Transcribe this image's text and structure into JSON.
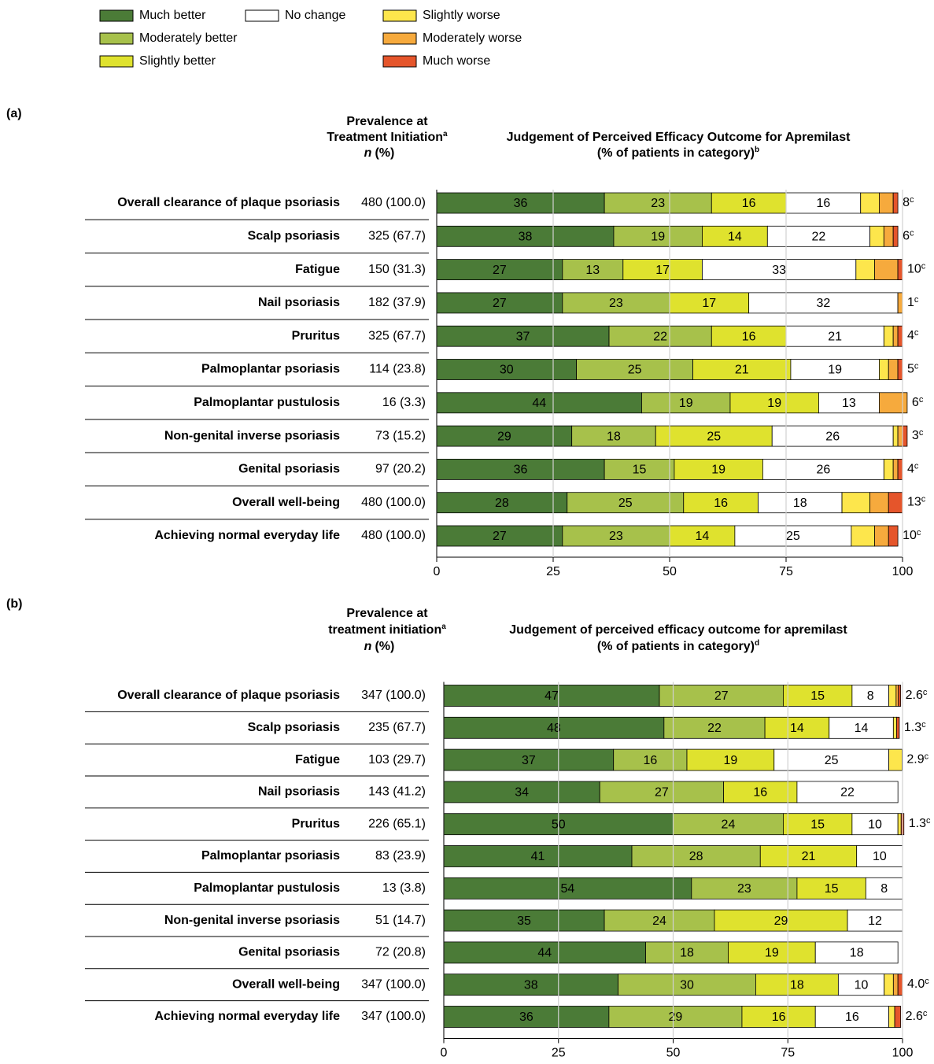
{
  "chart_data": [
    {
      "type": "bar",
      "orientation": "horizontal",
      "stacked": true,
      "panel_label": "(a)",
      "prevalence_header": [
        "Prevalence at",
        "Treatment Initiation"
      ],
      "prevalence_marker": "a",
      "prevalence_unit_symbol": "n",
      "prevalence_unit": "(%)",
      "title": [
        "Judgement of Perceived Efficacy Outcome for Apremilast",
        "(% of patients in category)"
      ],
      "title_marker": "b",
      "categories": [
        "Overall clearance of plaque psoriasis",
        "Scalp psoriasis",
        "Fatigue",
        "Nail psoriasis",
        "Pruritus",
        "Palmoplantar psoriasis",
        "Palmoplantar pustulosis",
        "Non-genital inverse psoriasis",
        "Genital psoriasis",
        "Overall well-being",
        "Achieving normal everyday life"
      ],
      "prevalence": [
        "480 (100.0)",
        "325 (67.7)",
        "150 (31.3)",
        "182 (37.9)",
        "325 (67.7)",
        "114 (23.8)",
        "16 (3.3)",
        "73 (15.2)",
        "97 (20.2)",
        "480 (100.0)",
        "480 (100.0)"
      ],
      "series": [
        {
          "name": "Much better",
          "color": "#4b7b37",
          "label_color": "#ffffff",
          "show_labels": true,
          "values": [
            36,
            38,
            27,
            27,
            37,
            30,
            44,
            29,
            36,
            28,
            27
          ]
        },
        {
          "name": "Moderately better",
          "color": "#a7c14b",
          "label_color": "#000000",
          "show_labels": true,
          "values": [
            23,
            19,
            13,
            23,
            22,
            25,
            19,
            18,
            15,
            25,
            23
          ]
        },
        {
          "name": "Slightly better",
          "color": "#dfe22e",
          "label_color": "#000000",
          "show_labels": true,
          "values": [
            16,
            14,
            17,
            17,
            16,
            21,
            19,
            25,
            19,
            16,
            14
          ]
        },
        {
          "name": "No change",
          "color": "#ffffff",
          "label_color": "#000000",
          "show_labels": true,
          "values": [
            16,
            22,
            33,
            32,
            21,
            19,
            13,
            26,
            26,
            18,
            25
          ]
        },
        {
          "name": "Slightly worse",
          "color": "#fde64c",
          "label_color": "#000000",
          "show_labels": false,
          "values": [
            4,
            3,
            4,
            0,
            2,
            2,
            0,
            1,
            2,
            6,
            5
          ]
        },
        {
          "name": "Moderately worse",
          "color": "#f6aa3d",
          "label_color": "#000000",
          "show_labels": false,
          "values": [
            3,
            2,
            5,
            1,
            1,
            2,
            6,
            1,
            1,
            4,
            3
          ]
        },
        {
          "name": "Much worse",
          "color": "#e5552b",
          "label_color": "#000000",
          "show_labels": false,
          "values": [
            1,
            1,
            1,
            0,
            1,
            1,
            0,
            1,
            1,
            3,
            2
          ]
        }
      ],
      "worse_labels": [
        "8",
        "6",
        "10",
        "1",
        "4",
        "5",
        "6",
        "3",
        "4",
        "13",
        "10"
      ],
      "worse_marker": "c",
      "xlim": [
        0,
        100
      ],
      "xticks": [
        0,
        25,
        50,
        75,
        100
      ],
      "grid": true
    },
    {
      "type": "bar",
      "orientation": "horizontal",
      "stacked": true,
      "panel_label": "(b)",
      "prevalence_header": [
        "Prevalence at",
        "treatment initiation"
      ],
      "prevalence_marker": "a",
      "prevalence_unit_symbol": "n",
      "prevalence_unit": "(%)",
      "title": [
        "Judgement of perceived efficacy outcome for apremilast",
        "(% of patients in category)"
      ],
      "title_marker": "d",
      "categories": [
        "Overall clearance of plaque psoriasis",
        "Scalp psoriasis",
        "Fatigue",
        "Nail psoriasis",
        "Pruritus",
        "Palmoplantar psoriasis",
        "Palmoplantar pustulosis",
        "Non-genital inverse psoriasis",
        "Genital psoriasis",
        "Overall well-being",
        "Achieving normal everyday life"
      ],
      "prevalence": [
        "347 (100.0)",
        "235 (67.7)",
        "103 (29.7)",
        "143 (41.2)",
        "226 (65.1)",
        "83 (23.9)",
        "13 (3.8)",
        "51 (14.7)",
        "72 (20.8)",
        "347 (100.0)",
        "347 (100.0)"
      ],
      "series": [
        {
          "name": "Much better",
          "color": "#4b7b37",
          "label_color": "#ffffff",
          "show_labels": true,
          "values": [
            47,
            48,
            37,
            34,
            50,
            41,
            54,
            35,
            44,
            38,
            36
          ]
        },
        {
          "name": "Moderately better",
          "color": "#a7c14b",
          "label_color": "#000000",
          "show_labels": true,
          "values": [
            27,
            22,
            16,
            27,
            24,
            28,
            23,
            24,
            18,
            30,
            29
          ]
        },
        {
          "name": "Slightly better",
          "color": "#dfe22e",
          "label_color": "#000000",
          "show_labels": true,
          "values": [
            15,
            14,
            19,
            16,
            15,
            21,
            15,
            29,
            19,
            18,
            16
          ]
        },
        {
          "name": "No change",
          "color": "#ffffff",
          "label_color": "#000000",
          "show_labels": true,
          "values": [
            8,
            14,
            25,
            22,
            10,
            10,
            8,
            12,
            18,
            10,
            16
          ]
        },
        {
          "name": "Slightly worse",
          "color": "#fde64c",
          "label_color": "#000000",
          "show_labels": false,
          "values": [
            1.6,
            0.7,
            2.9,
            0,
            0.7,
            0,
            0,
            0,
            0,
            2,
            1.3
          ]
        },
        {
          "name": "Moderately worse",
          "color": "#f6aa3d",
          "label_color": "#000000",
          "show_labels": false,
          "values": [
            0.5,
            0,
            0,
            0,
            0,
            0,
            0,
            0,
            0,
            1,
            0
          ]
        },
        {
          "name": "Much worse",
          "color": "#e5552b",
          "label_color": "#000000",
          "show_labels": false,
          "values": [
            0.5,
            0.6,
            0,
            0,
            0.6,
            0,
            0,
            0,
            0,
            1,
            1.3
          ]
        }
      ],
      "worse_labels": [
        "2.6",
        "1.3",
        "2.9",
        null,
        "1.3",
        null,
        null,
        null,
        null,
        "4.0",
        "2.6"
      ],
      "worse_marker": "c",
      "xlim": [
        0,
        100
      ],
      "xticks": [
        0,
        25,
        50,
        75,
        100
      ],
      "grid": true
    }
  ]
}
